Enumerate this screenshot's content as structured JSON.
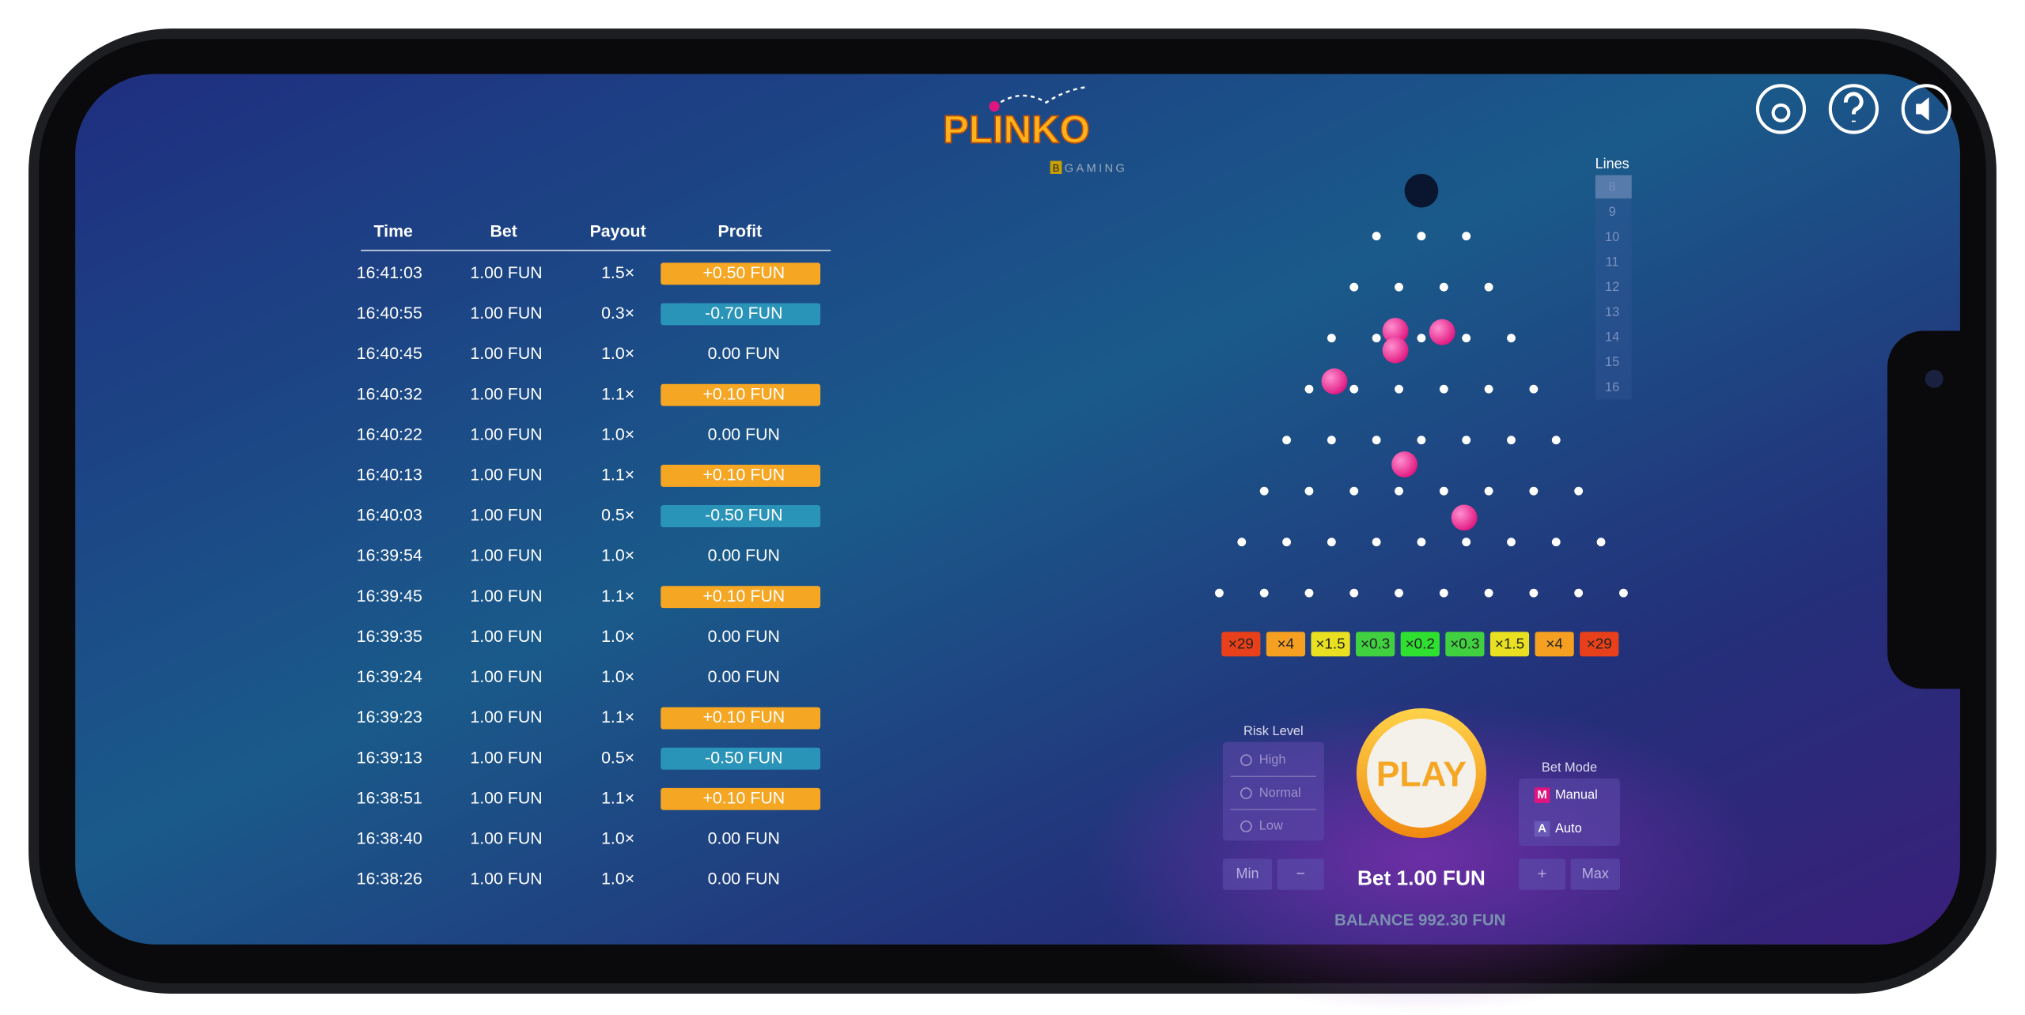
{
  "header": {
    "logo": "PLINKO",
    "brand_mark": "B",
    "brand": "GAMING"
  },
  "history": {
    "columns": [
      "Time",
      "Bet",
      "Payout",
      "Profit"
    ],
    "rows": [
      [
        "16:41:03",
        "1.00 FUN",
        "1.5×",
        "+0.50 FUN"
      ],
      [
        "16:40:55",
        "1.00 FUN",
        "0.3×",
        "-0.70 FUN"
      ],
      [
        "16:40:45",
        "1.00 FUN",
        "1.0×",
        "0.00 FUN"
      ],
      [
        "16:40:32",
        "1.00 FUN",
        "1.1×",
        "+0.10 FUN"
      ],
      [
        "16:40:22",
        "1.00 FUN",
        "1.0×",
        "0.00 FUN"
      ],
      [
        "16:40:13",
        "1.00 FUN",
        "1.1×",
        "+0.10 FUN"
      ],
      [
        "16:40:03",
        "1.00 FUN",
        "0.5×",
        "-0.50 FUN"
      ],
      [
        "16:39:54",
        "1.00 FUN",
        "1.0×",
        "0.00 FUN"
      ],
      [
        "16:39:45",
        "1.00 FUN",
        "1.1×",
        "+0.10 FUN"
      ],
      [
        "16:39:35",
        "1.00 FUN",
        "1.0×",
        "0.00 FUN"
      ],
      [
        "16:39:24",
        "1.00 FUN",
        "1.0×",
        "0.00 FUN"
      ],
      [
        "16:39:23",
        "1.00 FUN",
        "1.1×",
        "+0.10 FUN"
      ],
      [
        "16:39:13",
        "1.00 FUN",
        "0.5×",
        "-0.50 FUN"
      ],
      [
        "16:38:51",
        "1.00 FUN",
        "1.1×",
        "+0.10 FUN"
      ],
      [
        "16:38:40",
        "1.00 FUN",
        "1.0×",
        "0.00 FUN"
      ],
      [
        "16:38:26",
        "1.00 FUN",
        "1.0×",
        "0.00 FUN"
      ]
    ]
  },
  "lines": {
    "label": "Lines",
    "options": [
      "8",
      "9",
      "10",
      "11",
      "12",
      "13",
      "14",
      "15",
      "16"
    ]
  },
  "multipliers": [
    "×29",
    "×4",
    "×1.5",
    "×0.3",
    "×0.2",
    "×0.3",
    "×1.5",
    "×4",
    "×29"
  ],
  "risk_level": {
    "label": "Risk Level",
    "options": [
      "High",
      "Normal",
      "Low"
    ]
  },
  "bet_mode": {
    "label": "Bet Mode",
    "options": [
      {
        "key": "M",
        "label": "Manual"
      },
      {
        "key": "A",
        "label": "Auto"
      }
    ]
  },
  "play": "PLAY",
  "bet": {
    "min": "Min",
    "minus": "−",
    "label": "Bet 1.00 FUN",
    "plus": "+",
    "max": "Max"
  },
  "balance": "BALANCE 992.30 FUN"
}
